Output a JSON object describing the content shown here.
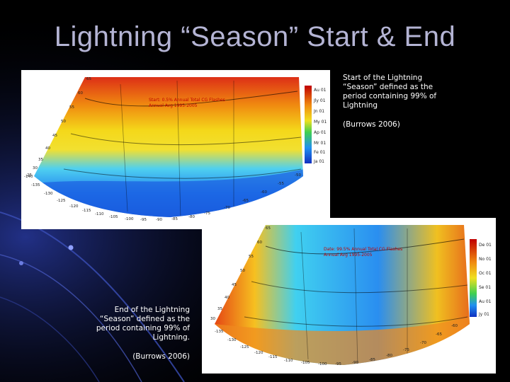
{
  "slide": {
    "title": "Lightning “Season” Start & End"
  },
  "map_start": {
    "header_line1": "Start: 0.5%  Annual Total CG Flashes",
    "header_line2": "Annual Avg 1995-2005",
    "legend": [
      "Au 01",
      "Jly 01",
      "Jn 01",
      "My 01",
      "Ap 01",
      "Mr 01",
      "Fe 01",
      "Ja 01"
    ],
    "lon_labels": [
      "-140",
      "-135",
      "-130",
      "-125",
      "-120",
      "-115",
      "-110",
      "-105",
      "-100",
      "-95",
      "-90",
      "-85",
      "-80",
      "-75",
      "-70",
      "-65",
      "-60",
      "-55",
      "-50"
    ],
    "lat_labels": [
      "65",
      "60",
      "55",
      "50",
      "45",
      "40",
      "35",
      "30",
      "25"
    ]
  },
  "map_end": {
    "header_line1": "Date: 99.5%  Annual Total CG Flashes",
    "header_line2": "Annual Avg 1995-2005",
    "legend": [
      "De 01",
      "No 01",
      "Oc 01",
      "Se 01",
      "Au 01",
      "Jy 01"
    ],
    "lon_labels": [
      "-135",
      "-130",
      "-125",
      "-120",
      "-115",
      "-110",
      "-105",
      "-100",
      "-95",
      "-90",
      "-85",
      "-80",
      "-75",
      "-70",
      "-65",
      "-60"
    ],
    "lat_labels": [
      "65",
      "60",
      "55",
      "50",
      "45",
      "40",
      "35",
      "30"
    ]
  },
  "caption_start": {
    "text": "Start of the Lightning “Season” defined as the period containing 99% of Lightning",
    "citation": "(Burrows 2006)"
  },
  "caption_end": {
    "text": "End of the Lightning “Season” defined as the period containing 99% of Lightning.",
    "citation": "(Burrows 2006)"
  }
}
